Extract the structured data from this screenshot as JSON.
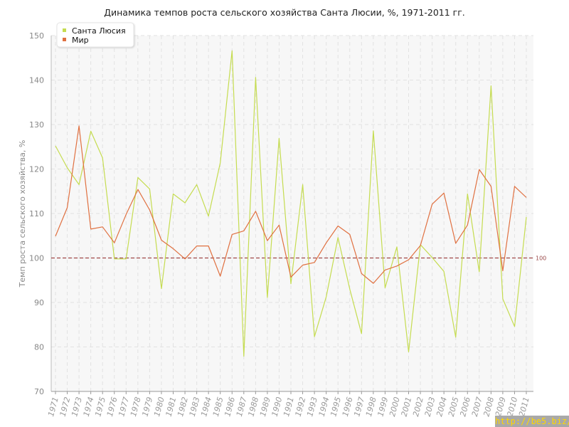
{
  "watermark": "http://be5.biz/",
  "chart_data": {
    "type": "line",
    "title": "Динамика темпов роста сельского хозяйства Санта Люсии, %, 1971-2011 гг.",
    "xlabel": "",
    "ylabel": "Темп роста сельского хозяйства, %",
    "ylim": [
      70,
      150
    ],
    "yticks": [
      70,
      80,
      90,
      100,
      110,
      120,
      130,
      140,
      150
    ],
    "grid": true,
    "legend_position": "top-left",
    "x": [
      "1971",
      "1972",
      "1973",
      "1974",
      "1975",
      "1976",
      "1977",
      "1978",
      "1979",
      "1980",
      "1981",
      "1982",
      "1983",
      "1984",
      "1985",
      "1986",
      "1987",
      "1988",
      "1989",
      "1990",
      "1991",
      "1992",
      "1993",
      "1994",
      "1995",
      "1996",
      "1997",
      "1998",
      "1999",
      "2000",
      "2001",
      "2002",
      "2003",
      "2004",
      "2005",
      "2006",
      "2007",
      "2008",
      "2009",
      "2010",
      "2011"
    ],
    "series": [
      {
        "name": "Санта Люсия",
        "color": "#c5dc50",
        "values": [
          125.2,
          120.3,
          116.5,
          128.5,
          122.5,
          99.8,
          99.8,
          118.1,
          115.5,
          93.1,
          114.4,
          112.4,
          116.5,
          109.4,
          121.4,
          146.6,
          77.9,
          140.6,
          91.1,
          126.9,
          94.2,
          116.5,
          82.3,
          91.3,
          104.6,
          93.0,
          83.0,
          128.6,
          93.3,
          102.5,
          78.9,
          103.0,
          100.1,
          97.0,
          82.2,
          114.4,
          96.9,
          138.7,
          90.8,
          84.6,
          109.2
        ]
      },
      {
        "name": "Мир",
        "color": "#e07040",
        "values": [
          104.9,
          111.3,
          129.7,
          106.5,
          107.0,
          103.4,
          109.8,
          115.4,
          110.8,
          104.0,
          102.1,
          99.8,
          102.7,
          102.7,
          95.9,
          105.3,
          106.1,
          110.5,
          103.9,
          107.4,
          95.7,
          98.4,
          99.0,
          103.4,
          107.2,
          105.3,
          96.5,
          94.3,
          97.3,
          98.2,
          99.6,
          102.8,
          112.1,
          114.6,
          103.3,
          107.4,
          119.9,
          116.1,
          97.1,
          116.1,
          113.6
        ]
      }
    ],
    "reference_line": {
      "value": 100,
      "label": "100",
      "color": "#a04848"
    }
  }
}
